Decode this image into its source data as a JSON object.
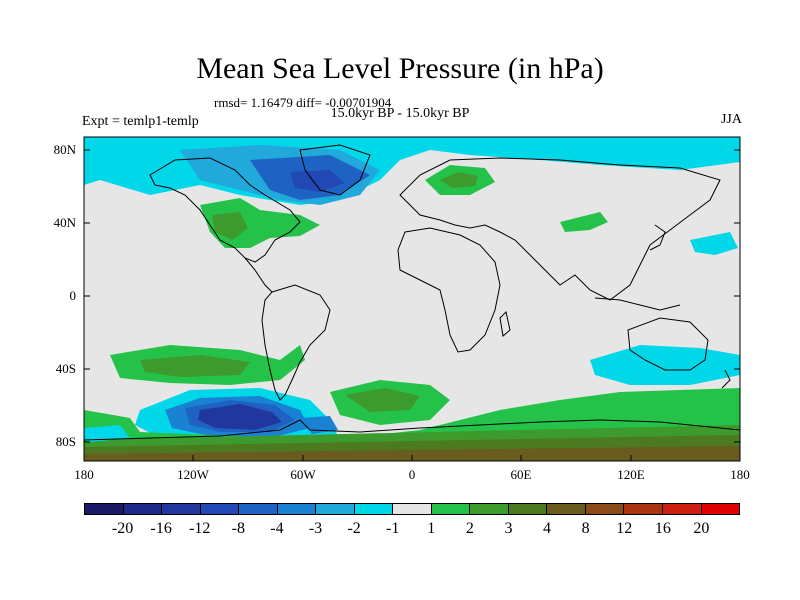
{
  "title": "Mean Sea Level Pressure (in hPa)",
  "stats": "rmsd= 1.16479 diff= -0.00701904",
  "period": "15.0kyr BP - 15.0kyr BP",
  "experiment": "Expt = temlp1-temlp",
  "season": "JJA",
  "lat_ticks": [
    "80N",
    "40N",
    "0",
    "40S",
    "80S"
  ],
  "lon_ticks": [
    "180",
    "120W",
    "60W",
    "0",
    "60E",
    "120E",
    "180"
  ],
  "colorbar": {
    "labels": [
      "-20",
      "-16",
      "-12",
      "-8",
      "-4",
      "-3",
      "-2",
      "-1",
      "1",
      "2",
      "3",
      "4",
      "8",
      "12",
      "16",
      "20"
    ],
    "colors": [
      "#1a1a66",
      "#1f2a8a",
      "#22379e",
      "#2148b4",
      "#1e63c4",
      "#1a82d2",
      "#21a9dc",
      "#00d7e8",
      "#e6e6e6",
      "#25c24a",
      "#3d9a2c",
      "#4b7a20",
      "#6a5c1e",
      "#8b4a17",
      "#aa3312",
      "#cc1f10",
      "#e00000"
    ]
  },
  "colors": {
    "land_background": "#e6e6e6",
    "coast": "#000000"
  }
}
